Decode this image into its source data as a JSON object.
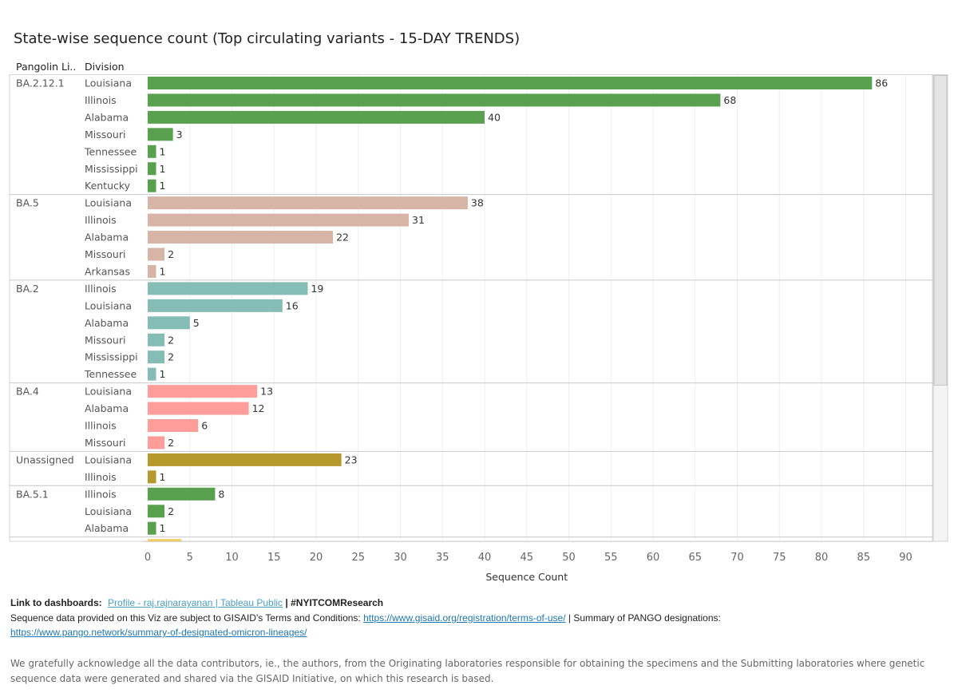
{
  "header": {
    "title": "State-wise sequence count (Top circulating variants - 15-DAY TRENDS)",
    "col_lineage": "Pangolin Li..",
    "col_division": "Division"
  },
  "chart_data": {
    "type": "bar",
    "orientation": "horizontal",
    "title": "State-wise sequence count (Top circulating variants - 15-DAY TRENDS)",
    "xlabel": "Sequence Count",
    "xlim": [
      0,
      92
    ],
    "xticks": [
      0,
      5,
      10,
      15,
      20,
      25,
      30,
      35,
      40,
      45,
      50,
      55,
      60,
      65,
      70,
      75,
      80,
      85,
      90
    ],
    "groups": [
      {
        "lineage": "BA.2.12.1",
        "color": "#59a14f",
        "rows": [
          {
            "division": "Louisiana",
            "value": 86
          },
          {
            "division": "Illinois",
            "value": 68
          },
          {
            "division": "Alabama",
            "value": 40
          },
          {
            "division": "Missouri",
            "value": 3
          },
          {
            "division": "Tennessee",
            "value": 1
          },
          {
            "division": "Mississippi",
            "value": 1
          },
          {
            "division": "Kentucky",
            "value": 1
          }
        ]
      },
      {
        "lineage": "BA.5",
        "color": "#d7b5a6",
        "rows": [
          {
            "division": "Louisiana",
            "value": 38
          },
          {
            "division": "Illinois",
            "value": 31
          },
          {
            "division": "Alabama",
            "value": 22
          },
          {
            "division": "Missouri",
            "value": 2
          },
          {
            "division": "Arkansas",
            "value": 1
          }
        ]
      },
      {
        "lineage": "BA.2",
        "color": "#86bcb6",
        "rows": [
          {
            "division": "Illinois",
            "value": 19
          },
          {
            "division": "Louisiana",
            "value": 16
          },
          {
            "division": "Alabama",
            "value": 5
          },
          {
            "division": "Missouri",
            "value": 2
          },
          {
            "division": "Mississippi",
            "value": 2
          },
          {
            "division": "Tennessee",
            "value": 1
          }
        ]
      },
      {
        "lineage": "BA.4",
        "color": "#ff9d9a",
        "rows": [
          {
            "division": "Louisiana",
            "value": 13
          },
          {
            "division": "Alabama",
            "value": 12
          },
          {
            "division": "Illinois",
            "value": 6
          },
          {
            "division": "Missouri",
            "value": 2
          }
        ]
      },
      {
        "lineage": "Unassigned",
        "color": "#b6992d",
        "rows": [
          {
            "division": "Louisiana",
            "value": 23
          },
          {
            "division": "Illinois",
            "value": 1
          }
        ]
      },
      {
        "lineage": "BA.5.1",
        "color": "#59a14f",
        "rows": [
          {
            "division": "Illinois",
            "value": 8
          },
          {
            "division": "Louisiana",
            "value": 2
          },
          {
            "division": "Alabama",
            "value": 1
          }
        ]
      }
    ],
    "partial_next_color": "#f1ce63",
    "partial_next_value": 4
  },
  "footer": {
    "link_label": "Link to dashboards:",
    "profile_link": "Profile - raj.rajnarayanan | Tableau Public",
    "hashtag": "| #NYITCOMResearch",
    "terms_text": "Sequence data provided on this Viz are subject to GISAID's Terms and Conditions:",
    "terms_url": "https://www.gisaid.org/registration/terms-of-use/",
    "pango_text": "| Summary of PANGO designations:",
    "pango_url": "https://www.pango.network/summary-of-designated-omicron-lineages/",
    "acknowledgement": "We gratefully acknowledge all the data contributors, ie., the authors, from the Originating laboratories responsible for obtaining the specimens and the Submitting laboratories where genetic sequence data were generated and shared via the GISAID Initiative, on which this research is based."
  }
}
